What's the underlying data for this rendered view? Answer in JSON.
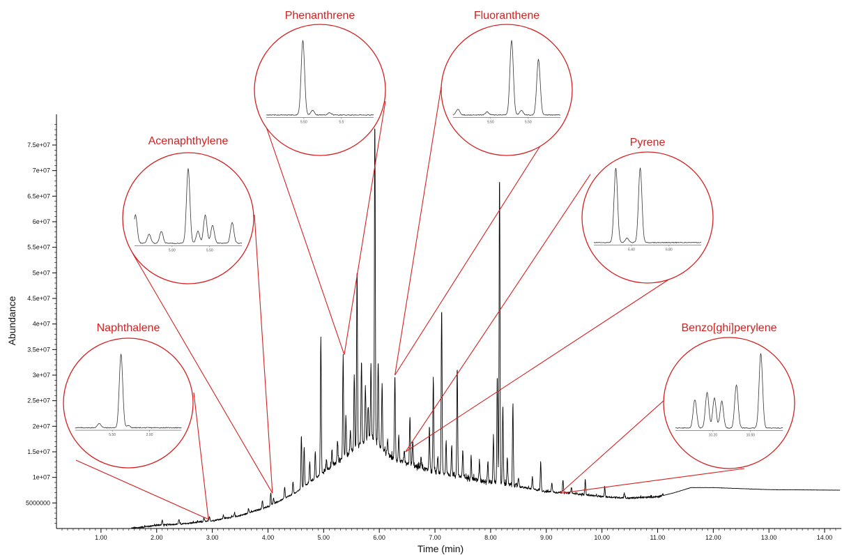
{
  "chart_data": {
    "type": "line",
    "xlabel": "Time (min)",
    "ylabel": "Abundance",
    "xlim": [
      0.2,
      14.3
    ],
    "ylim": [
      0,
      81000000
    ],
    "x_ticks": [
      1.0,
      2.0,
      3.0,
      4.0,
      5.0,
      6.0,
      7.0,
      8.0,
      9.0,
      10.0,
      11.0,
      12.0,
      13.0,
      14.0
    ],
    "x_tick_labels": [
      "1.00",
      "2.00",
      "3.00",
      "4.00",
      "5.00",
      "6.00",
      "7.00",
      "8.00",
      "9.00",
      "10.00",
      "11.00",
      "12.00",
      "13.00",
      "14.00"
    ],
    "y_ticks": [
      5000000,
      10000000,
      15000000,
      20000000,
      25000000,
      30000000,
      35000000,
      40000000,
      45000000,
      50000000,
      55000000,
      60000000,
      65000000,
      70000000,
      75000000
    ],
    "y_tick_labels": [
      "5000000",
      "1e+07",
      "1.5e+07",
      "2e+07",
      "2.5e+07",
      "3e+07",
      "3.5e+07",
      "4e+07",
      "4.5e+07",
      "5e+07",
      "5.5e+07",
      "6e+07",
      "6.5e+07",
      "7e+07",
      "7.5e+07"
    ],
    "grid": false,
    "line_color": "#000000",
    "annotation_color": "#d42020",
    "baseline": [
      [
        1.55,
        0
      ],
      [
        2.0,
        600000
      ],
      [
        2.5,
        900000
      ],
      [
        3.0,
        1500000
      ],
      [
        3.5,
        2500000
      ],
      [
        4.0,
        4200000
      ],
      [
        4.5,
        7000000
      ],
      [
        5.0,
        11000000
      ],
      [
        5.5,
        15000000
      ],
      [
        5.85,
        18000000
      ],
      [
        6.0,
        16000000
      ],
      [
        6.2,
        14000000
      ],
      [
        6.5,
        12500000
      ],
      [
        7.0,
        11000000
      ],
      [
        7.5,
        10000000
      ],
      [
        8.0,
        9000000
      ],
      [
        8.5,
        8200000
      ],
      [
        9.0,
        7200000
      ],
      [
        9.5,
        6800000
      ],
      [
        10.0,
        6200000
      ],
      [
        10.5,
        5900000
      ],
      [
        11.0,
        6200000
      ],
      [
        11.3,
        7000000
      ],
      [
        11.6,
        8000000
      ],
      [
        12.0,
        8000000
      ],
      [
        12.5,
        7800000
      ],
      [
        13.0,
        7600000
      ],
      [
        14.3,
        7500000
      ]
    ],
    "peaks": [
      [
        2.1,
        1700000
      ],
      [
        2.4,
        1800000
      ],
      [
        2.85,
        2100000
      ],
      [
        2.95,
        2300000
      ],
      [
        3.2,
        2600000
      ],
      [
        3.4,
        3000000
      ],
      [
        3.65,
        4000000
      ],
      [
        3.9,
        5500000
      ],
      [
        4.05,
        7000000
      ],
      [
        4.1,
        6000000
      ],
      [
        4.3,
        8000000
      ],
      [
        4.45,
        9000000
      ],
      [
        4.6,
        18000000
      ],
      [
        4.65,
        16000000
      ],
      [
        4.75,
        13000000
      ],
      [
        4.85,
        15000000
      ],
      [
        4.95,
        37500000
      ],
      [
        5.05,
        13500000
      ],
      [
        5.15,
        15000000
      ],
      [
        5.25,
        17000000
      ],
      [
        5.35,
        34000000
      ],
      [
        5.4,
        22000000
      ],
      [
        5.48,
        19000000
      ],
      [
        5.55,
        30000000
      ],
      [
        5.6,
        51000000
      ],
      [
        5.68,
        33000000
      ],
      [
        5.75,
        28000000
      ],
      [
        5.8,
        24000000
      ],
      [
        5.85,
        32000000
      ],
      [
        5.92,
        80000000
      ],
      [
        5.98,
        33000000
      ],
      [
        6.05,
        28000000
      ],
      [
        6.15,
        17000000
      ],
      [
        6.28,
        30000000
      ],
      [
        6.35,
        18000000
      ],
      [
        6.45,
        15000000
      ],
      [
        6.55,
        22000000
      ],
      [
        6.6,
        17000000
      ],
      [
        6.75,
        14000000
      ],
      [
        6.9,
        20000000
      ],
      [
        6.97,
        29000000
      ],
      [
        7.05,
        14000000
      ],
      [
        7.12,
        43000000
      ],
      [
        7.2,
        17000000
      ],
      [
        7.3,
        16000000
      ],
      [
        7.4,
        31500000
      ],
      [
        7.5,
        15000000
      ],
      [
        7.65,
        14000000
      ],
      [
        7.8,
        13000000
      ],
      [
        7.95,
        13000000
      ],
      [
        8.05,
        18000000
      ],
      [
        8.12,
        30000000
      ],
      [
        8.16,
        69500000
      ],
      [
        8.22,
        24000000
      ],
      [
        8.3,
        14000000
      ],
      [
        8.4,
        24000000
      ],
      [
        8.5,
        10000000
      ],
      [
        8.75,
        10000000
      ],
      [
        8.9,
        13000000
      ],
      [
        9.1,
        9000000
      ],
      [
        9.3,
        9500000
      ],
      [
        9.45,
        8000000
      ],
      [
        9.7,
        9500000
      ],
      [
        10.05,
        8000000
      ],
      [
        10.4,
        7000000
      ]
    ],
    "annotations": [
      {
        "label": "Naphthalene",
        "x": 2.93,
        "y": 1800000,
        "peaks": [
          [
            0.5,
            0.06
          ],
          [
            0.95,
            1.0
          ],
          [
            1.1,
            0.03
          ]
        ],
        "ticks": [
          "5.50",
          "2.00"
        ]
      },
      {
        "label": "Acenaphthylene",
        "x": 4.08,
        "y": 6900000,
        "peaks": [
          [
            0.02,
            0.38
          ],
          [
            0.3,
            0.12
          ],
          [
            0.55,
            0.16
          ],
          [
            1.1,
            1.0
          ],
          [
            1.3,
            0.16
          ],
          [
            1.45,
            0.38
          ],
          [
            1.6,
            0.24
          ],
          [
            2.0,
            0.28
          ]
        ],
        "ticks": [
          "5.80",
          "5.50"
        ]
      },
      {
        "label": "Phenanthrene",
        "x": 5.37,
        "y": 34000000,
        "peaks": [
          [
            0.75,
            1.0
          ],
          [
            0.95,
            0.06
          ],
          [
            1.3,
            0.03
          ]
        ],
        "ticks": [
          "5.50",
          "5.5"
        ]
      },
      {
        "label": "Fluoranthene",
        "x": 6.28,
        "y": 30000000,
        "peaks": [
          [
            0.1,
            0.08
          ],
          [
            0.7,
            0.04
          ],
          [
            1.2,
            1.0
          ],
          [
            1.4,
            0.06
          ],
          [
            1.75,
            0.75
          ]
        ],
        "ticks": [
          "5.50",
          "5.50"
        ]
      },
      {
        "label": "Pyrene",
        "x": 6.47,
        "y": 15000000,
        "peaks": [
          [
            0.45,
            1.0
          ],
          [
            0.68,
            0.06
          ],
          [
            0.95,
            1.0
          ]
        ],
        "ticks": [
          "6.40",
          "6.80"
        ]
      },
      {
        "label": "Benzo[ghi]perylene",
        "x": 9.25,
        "y": 6900000,
        "peaks": [
          [
            0.4,
            0.38
          ],
          [
            0.65,
            0.48
          ],
          [
            0.8,
            0.4
          ],
          [
            0.95,
            0.36
          ],
          [
            1.25,
            0.58
          ],
          [
            1.75,
            1.0
          ]
        ],
        "ticks": [
          "10.20",
          "10.50"
        ]
      }
    ]
  }
}
